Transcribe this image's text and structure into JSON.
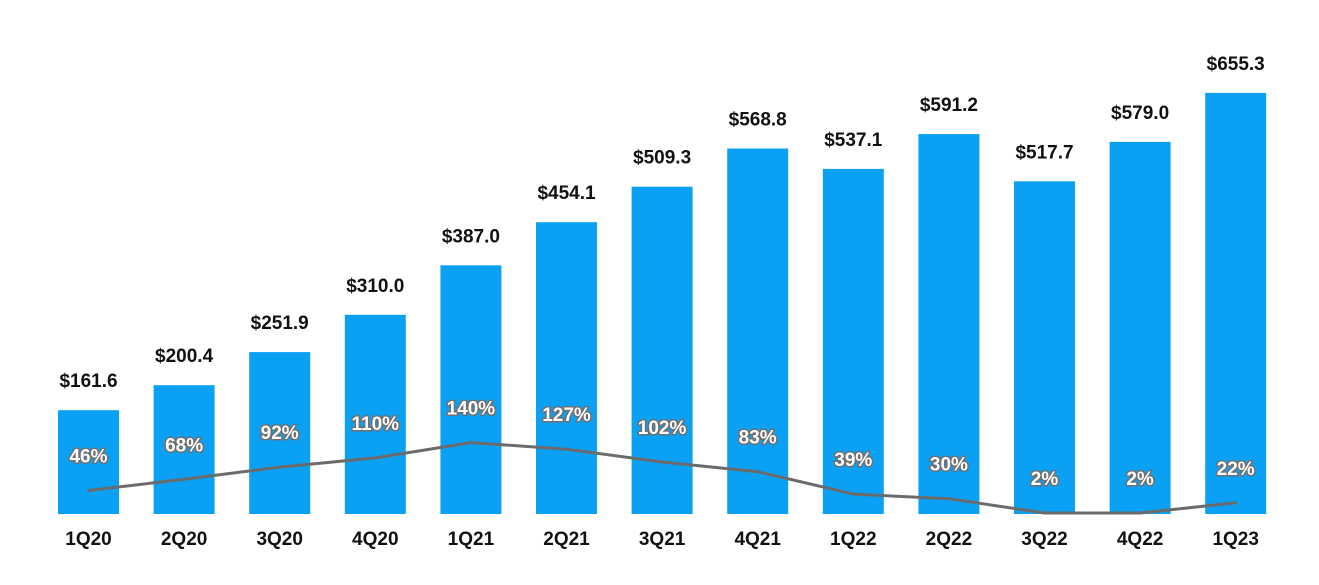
{
  "chart_data": {
    "type": "bar",
    "categories": [
      "1Q20",
      "2Q20",
      "3Q20",
      "4Q20",
      "1Q21",
      "2Q21",
      "3Q21",
      "4Q21",
      "1Q22",
      "2Q22",
      "3Q22",
      "4Q22",
      "1Q23"
    ],
    "series": [
      {
        "type": "bar",
        "values": [
          161.6,
          200.4,
          251.9,
          310.0,
          387.0,
          454.1,
          509.3,
          568.8,
          537.1,
          591.2,
          517.7,
          579.0,
          655.3
        ],
        "labels": [
          "$161.6",
          "$200.4",
          "$251.9",
          "$310.0",
          "$387.0",
          "$454.1",
          "$509.3",
          "$568.8",
          "$537.1",
          "$591.2",
          "$517.7",
          "$579.0",
          "$655.3"
        ],
        "color": "#0aa1f5"
      },
      {
        "type": "line",
        "values": [
          46,
          68,
          92,
          110,
          140,
          127,
          102,
          83,
          39,
          30,
          2,
          2,
          22
        ],
        "labels": [
          "46%",
          "68%",
          "92%",
          "110%",
          "140%",
          "127%",
          "102%",
          "83%",
          "39%",
          "30%",
          "2%",
          "2%",
          "22%"
        ],
        "color": "#6b6b6b"
      }
    ],
    "ylim": [
      0,
      670
    ],
    "grid": false,
    "title": "",
    "xlabel": "",
    "ylabel": ""
  }
}
